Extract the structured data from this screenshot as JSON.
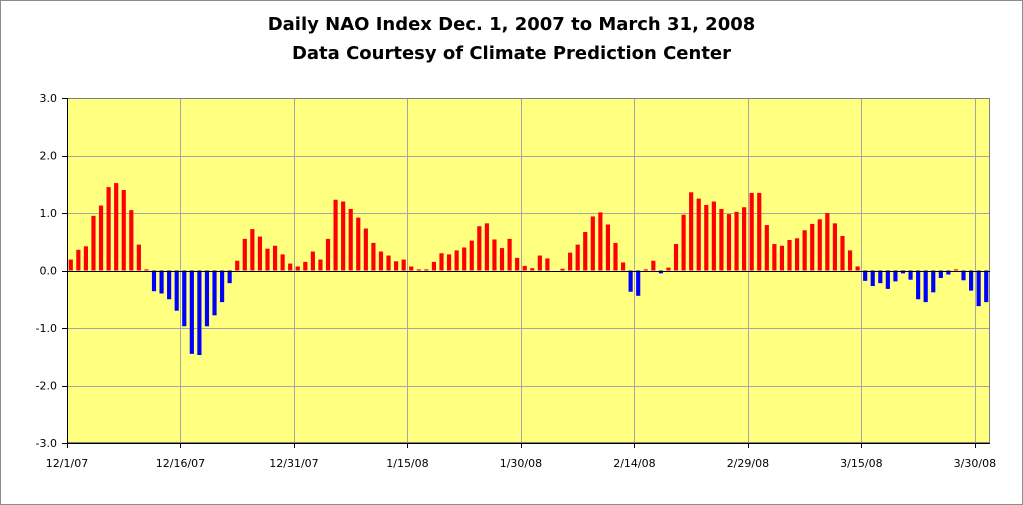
{
  "chart_data": {
    "type": "bar",
    "title": "Daily NAO Index Dec. 1, 2007 to March 31, 2008",
    "subtitle": "Data Courtesy of Climate Prediction Center",
    "xlabel": "",
    "ylabel": "",
    "ylim": [
      -3.0,
      3.0
    ],
    "ytick_values": [
      3.0,
      2.0,
      1.0,
      0.0,
      -1.0,
      -2.0,
      -3.0
    ],
    "yticks": [
      "3.0",
      "2.0",
      "1.0",
      "0.0",
      "-1.0",
      "-2.0",
      "-3.0"
    ],
    "xticks": [
      {
        "day": 0,
        "label": "12/1/07"
      },
      {
        "day": 15,
        "label": "12/16/07"
      },
      {
        "day": 30,
        "label": "12/31/07"
      },
      {
        "day": 45,
        "label": "1/15/08"
      },
      {
        "day": 60,
        "label": "1/30/08"
      },
      {
        "day": 75,
        "label": "2/14/08"
      },
      {
        "day": 90,
        "label": "2/29/08"
      },
      {
        "day": 105,
        "label": "3/15/08"
      },
      {
        "day": 120,
        "label": "3/30/08"
      }
    ],
    "grid": true,
    "positive_color": "#ff0000",
    "negative_color": "#0000ff",
    "plot_background": "#ffff80",
    "values": [
      0.19,
      0.36,
      0.42,
      0.95,
      1.13,
      1.45,
      1.52,
      1.4,
      1.05,
      0.45,
      0.02,
      -0.36,
      -0.4,
      -0.5,
      -0.7,
      -0.97,
      -1.45,
      -1.47,
      -0.97,
      -0.78,
      -0.55,
      -0.22,
      0.17,
      0.55,
      0.72,
      0.59,
      0.38,
      0.43,
      0.28,
      0.12,
      0.07,
      0.15,
      0.33,
      0.19,
      0.55,
      1.23,
      1.2,
      1.07,
      0.92,
      0.73,
      0.48,
      0.33,
      0.26,
      0.16,
      0.19,
      0.07,
      0.02,
      0.02,
      0.15,
      0.3,
      0.28,
      0.35,
      0.4,
      0.52,
      0.77,
      0.82,
      0.54,
      0.39,
      0.55,
      0.22,
      0.08,
      0.04,
      0.26,
      0.21,
      0.0,
      0.03,
      0.31,
      0.45,
      0.67,
      0.94,
      1.01,
      0.8,
      0.48,
      0.14,
      -0.37,
      -0.44,
      0.02,
      0.17,
      -0.05,
      0.05,
      0.46,
      0.97,
      1.36,
      1.25,
      1.14,
      1.2,
      1.07,
      0.98,
      1.02,
      1.1,
      1.35,
      1.35,
      0.79,
      0.46,
      0.43,
      0.53,
      0.56,
      0.7,
      0.81,
      0.89,
      1.0,
      0.82,
      0.6,
      0.35,
      0.07,
      -0.18,
      -0.27,
      -0.22,
      -0.32,
      -0.19,
      -0.05,
      -0.16,
      -0.5,
      -0.55,
      -0.38,
      -0.13,
      -0.07,
      0.02,
      -0.17,
      -0.35,
      -0.62,
      -0.55
    ]
  }
}
